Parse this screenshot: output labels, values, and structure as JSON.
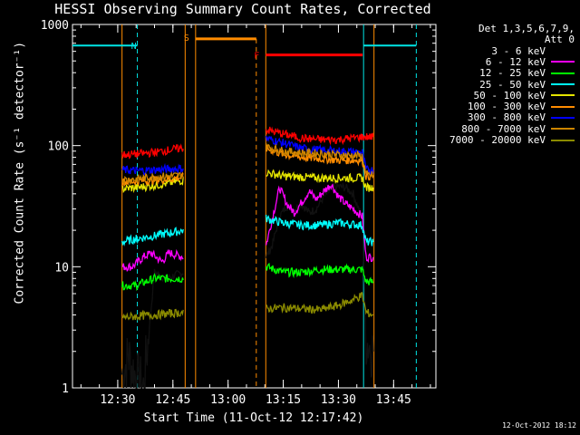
{
  "chart_data": {
    "type": "line",
    "title": "HESSI Observing Summary Count Rates, Corrected",
    "xlabel": "Start Time (11-Oct-12 12:17:42)",
    "ylabel": "Corrected Count Rate (s⁻¹ detector⁻¹)",
    "yscale": "log",
    "ylim": [
      1,
      1000
    ],
    "xlim": [
      "12:17:42",
      "13:56:30"
    ],
    "xticks": [
      "12:30",
      "12:45",
      "13:00",
      "13:15",
      "13:30",
      "13:45"
    ],
    "yticks": [
      "1",
      "10",
      "100",
      "1000"
    ],
    "timestamp": "12-Oct-2012 18:12",
    "legend_header": [
      "Det 1,3,5,6,7,9,",
      "Att 0"
    ],
    "legend_position": "right",
    "segments": [
      {
        "label": "N",
        "color": "#00e5e5",
        "style": "night",
        "x": [
          "12:17:42",
          "12:35:20"
        ]
      },
      {
        "label": "S",
        "color": "#ff8c00",
        "style": "saa",
        "x": [
          "12:51:10",
          "13:07:40"
        ]
      },
      {
        "label": "F",
        "color": "#ff0000",
        "style": "flare",
        "x": [
          "13:10:15",
          "13:36:35"
        ]
      },
      {
        "label": "",
        "color": "#00e5e5",
        "style": "night",
        "x": [
          "13:36:50",
          "13:51:10"
        ]
      }
    ],
    "data_windows": [
      [
        "12:31:10",
        "12:48:20"
      ],
      [
        "13:10:15",
        "13:39:40"
      ]
    ],
    "series": [
      {
        "name": "3 - 6 keV",
        "color": "#000000",
        "x": [
          "12:31:10",
          "12:33:00",
          "12:35:00",
          "12:37:00",
          "12:40:00",
          "12:43:00",
          "12:48:00",
          "13:10:20",
          "13:12:00",
          "13:14:00",
          "13:16:00",
          "13:18:00",
          "13:20:00",
          "13:22:00",
          "13:24:00",
          "13:26:00",
          "13:28:00",
          "13:30:00",
          "13:32:00",
          "13:34:00",
          "13:36:30",
          "13:37:30",
          "13:39:30"
        ],
        "values": [
          1.3,
          1.8,
          1.2,
          1.0,
          9,
          8,
          9,
          12,
          15,
          26,
          32,
          30,
          33,
          28,
          30,
          38,
          44,
          46,
          45,
          40,
          25,
          2.5,
          2.0
        ]
      },
      {
        "name": "6 - 12 keV",
        "color": "#ff00ff",
        "x": [
          "12:31:10",
          "12:34:00",
          "12:37:00",
          "12:39:00",
          "12:42:00",
          "12:44:00",
          "12:48:00",
          "13:10:20",
          "13:12:00",
          "13:14:00",
          "13:16:00",
          "13:18:00",
          "13:20:00",
          "13:22:00",
          "13:24:00",
          "13:26:00",
          "13:28:00",
          "13:30:00",
          "13:32:00",
          "13:34:00",
          "13:36:30",
          "13:37:30",
          "13:39:30"
        ],
        "values": [
          10,
          10,
          12,
          13,
          11,
          13,
          12,
          15,
          25,
          45,
          33,
          28,
          34,
          42,
          36,
          42,
          48,
          38,
          33,
          30,
          26,
          12,
          12
        ]
      },
      {
        "name": "12 - 25 keV",
        "color": "#00ff00",
        "x": [
          "12:31:10",
          "12:35:00",
          "12:40:00",
          "12:44:00",
          "12:48:00",
          "13:10:20",
          "13:15:00",
          "13:20:00",
          "13:25:00",
          "13:30:00",
          "13:36:30",
          "13:37:30",
          "13:39:30"
        ],
        "values": [
          7,
          7,
          8,
          8,
          8,
          10,
          9,
          9,
          9.5,
          9.5,
          9.5,
          7.5,
          7.5
        ]
      },
      {
        "name": "25 - 50 keV",
        "color": "#00ffff",
        "x": [
          "12:31:10",
          "12:35:00",
          "12:40:00",
          "12:44:00",
          "12:48:00",
          "13:10:20",
          "13:15:00",
          "13:20:00",
          "13:25:00",
          "13:30:00",
          "13:36:30",
          "13:37:30",
          "13:39:30"
        ],
        "values": [
          16,
          17,
          18,
          19,
          20,
          25,
          23,
          22,
          22,
          23,
          22,
          16,
          16
        ]
      },
      {
        "name": "50 - 100 keV",
        "color": "#e5e500",
        "x": [
          "12:31:10",
          "12:35:00",
          "12:40:00",
          "12:44:00",
          "12:48:00",
          "13:10:20",
          "13:15:00",
          "13:20:00",
          "13:25:00",
          "13:30:00",
          "13:36:30",
          "13:37:30",
          "13:39:30"
        ],
        "values": [
          44,
          45,
          47,
          49,
          52,
          60,
          56,
          55,
          54,
          54,
          54,
          45,
          45
        ]
      },
      {
        "name": "100 - 300 keV",
        "color": "#ff8c00",
        "x": [
          "12:31:10",
          "12:35:00",
          "12:40:00",
          "12:44:00",
          "12:48:00",
          "13:10:20",
          "13:15:00",
          "13:20:00",
          "13:25:00",
          "13:30:00",
          "13:36:30",
          "13:37:30",
          "13:39:30"
        ],
        "values": [
          50,
          51,
          52,
          53,
          55,
          95,
          85,
          80,
          78,
          76,
          76,
          56,
          56
        ]
      },
      {
        "name": "300 - 800 keV",
        "color": "#0000ff",
        "x": [
          "12:31:10",
          "12:35:00",
          "12:40:00",
          "12:44:00",
          "12:48:00",
          "13:10:20",
          "13:15:00",
          "13:20:00",
          "13:25:00",
          "13:30:00",
          "13:36:30",
          "13:37:30",
          "13:39:30"
        ],
        "values": [
          63,
          62,
          63,
          64,
          65,
          115,
          105,
          95,
          92,
          90,
          88,
          63,
          63
        ]
      },
      {
        "name": "800 - 7000 keV",
        "color": "#cd8500",
        "x": [
          "12:31:10",
          "12:35:00",
          "12:40:00",
          "12:44:00",
          "12:48:00",
          "13:10:20",
          "13:15:00",
          "13:20:00",
          "13:25:00",
          "13:30:00",
          "13:36:30",
          "13:37:30",
          "13:39:30"
        ],
        "values": [
          52,
          53,
          55,
          56,
          57,
          98,
          90,
          87,
          86,
          84,
          82,
          57,
          57
        ]
      },
      {
        "name": "7000 - 20000 keV",
        "color": "#8b8b00",
        "x": [
          "12:31:10",
          "12:35:00",
          "12:40:00",
          "12:44:00",
          "12:48:00",
          "13:10:20",
          "13:15:00",
          "13:20:00",
          "13:25:00",
          "13:30:00",
          "13:33:00",
          "13:36:30",
          "13:37:30",
          "13:39:30"
        ],
        "values": [
          3.8,
          3.9,
          4.0,
          4.1,
          4.2,
          4.5,
          4.6,
          4.5,
          4.4,
          4.8,
          5.2,
          5.8,
          4.2,
          4.0
        ]
      },
      {
        "name": "",
        "color": "#ff0000",
        "x": [
          "12:31:10",
          "12:35:00",
          "12:40:00",
          "12:44:00",
          "12:48:00",
          "13:10:20",
          "13:15:00",
          "13:20:00",
          "13:25:00",
          "13:30:00",
          "13:36:30",
          "13:37:30",
          "13:39:30"
        ],
        "values": [
          84,
          85,
          88,
          92,
          96,
          135,
          125,
          115,
          112,
          112,
          118,
          118,
          118
        ]
      }
    ]
  }
}
